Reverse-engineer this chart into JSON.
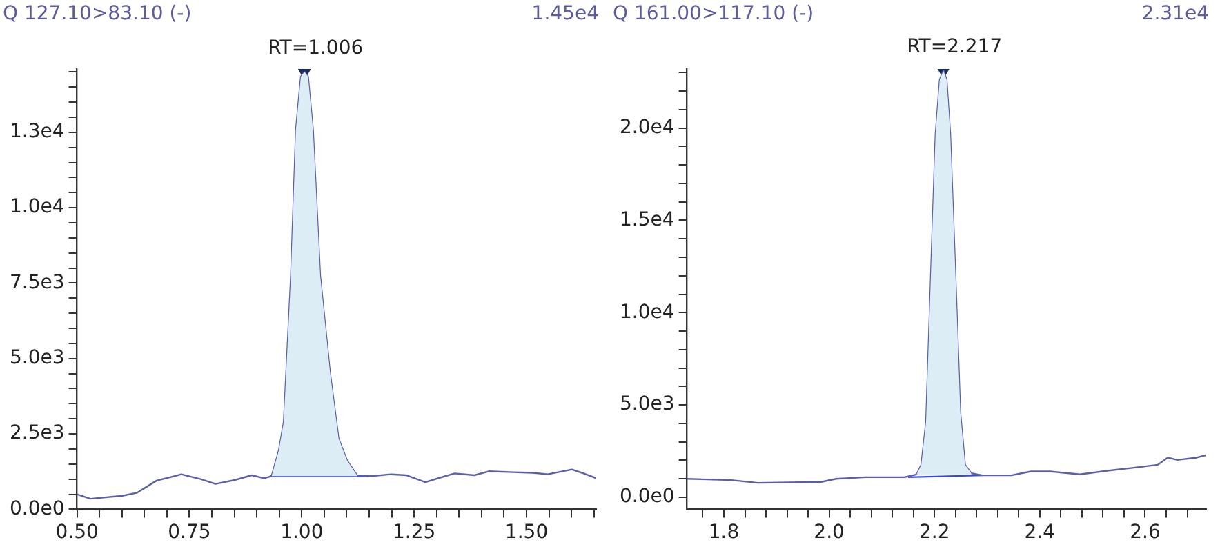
{
  "chart_data": [
    {
      "type": "line",
      "title": "Q 127.10>83.10 (-)",
      "subtitle": "1.45e4",
      "marker": "none",
      "xlim": [
        0.5,
        1.655
      ],
      "ylim": [
        0,
        14600
      ],
      "xticks": [
        {
          "value": 0.5,
          "label": "0.50"
        },
        {
          "value": 0.55,
          "label": null
        },
        {
          "value": 0.6,
          "label": null
        },
        {
          "value": 0.65,
          "label": null
        },
        {
          "value": 0.7,
          "label": null
        },
        {
          "value": 0.75,
          "label": "0.75"
        },
        {
          "value": 0.8,
          "label": null
        },
        {
          "value": 0.85,
          "label": null
        },
        {
          "value": 0.9,
          "label": null
        },
        {
          "value": 0.95,
          "label": null
        },
        {
          "value": 1.0,
          "label": "1.00"
        },
        {
          "value": 1.05,
          "label": null
        },
        {
          "value": 1.1,
          "label": null
        },
        {
          "value": 1.15,
          "label": null
        },
        {
          "value": 1.2,
          "label": null
        },
        {
          "value": 1.25,
          "label": "1.25"
        },
        {
          "value": 1.3,
          "label": null
        },
        {
          "value": 1.35,
          "label": null
        },
        {
          "value": 1.4,
          "label": null
        },
        {
          "value": 1.45,
          "label": null
        },
        {
          "value": 1.5,
          "label": "1.50"
        },
        {
          "value": 1.55,
          "label": null
        },
        {
          "value": 1.6,
          "label": null
        },
        {
          "value": 1.65,
          "label": null
        }
      ],
      "yticks": [
        {
          "value": 0,
          "label": "0.0e0"
        },
        {
          "value": 500,
          "label": null
        },
        {
          "value": 1000,
          "label": null
        },
        {
          "value": 1500,
          "label": null
        },
        {
          "value": 2000,
          "label": null
        },
        {
          "value": 2500,
          "label": "2.5e3"
        },
        {
          "value": 3000,
          "label": null
        },
        {
          "value": 3500,
          "label": null
        },
        {
          "value": 4000,
          "label": null
        },
        {
          "value": 4500,
          "label": null
        },
        {
          "value": 5000,
          "label": "5.0e3"
        },
        {
          "value": 5500,
          "label": null
        },
        {
          "value": 6000,
          "label": null
        },
        {
          "value": 6500,
          "label": null
        },
        {
          "value": 7000,
          "label": null
        },
        {
          "value": 7500,
          "label": "7.5e3"
        },
        {
          "value": 8000,
          "label": null
        },
        {
          "value": 8500,
          "label": null
        },
        {
          "value": 9000,
          "label": null
        },
        {
          "value": 9500,
          "label": null
        },
        {
          "value": 10000,
          "label": "1.0e4"
        },
        {
          "value": 10500,
          "label": null
        },
        {
          "value": 11000,
          "label": null
        },
        {
          "value": 11500,
          "label": null
        },
        {
          "value": 12000,
          "label": null
        },
        {
          "value": 12500,
          "label": "1.3e4"
        },
        {
          "value": 13000,
          "label": null
        },
        {
          "value": 13500,
          "label": null
        },
        {
          "value": 14000,
          "label": null
        },
        {
          "value": 14500,
          "label": null
        }
      ],
      "series": [
        {
          "type": "area",
          "color": "#dcedf5",
          "x": [
            0.933,
            0.949,
            0.96,
            0.976,
            0.987,
            0.998,
            1.006,
            1.014,
            1.025,
            1.041,
            1.063,
            1.082,
            1.101,
            1.123
          ],
          "values": [
            1100,
            1950,
            2900,
            7740,
            12580,
            14350,
            14500,
            14350,
            12580,
            7740,
            4520,
            2340,
            1610,
            1130
          ]
        },
        {
          "color": "#5a5fa8",
          "x": [
            0.5,
            0.53,
            0.601,
            0.634,
            0.677,
            0.732,
            0.775,
            0.808,
            0.851,
            0.889,
            0.916,
            0.933,
            0.949,
            0.96,
            0.976,
            0.987,
            0.998,
            1.006,
            1.014,
            1.025,
            1.041,
            1.063,
            1.082,
            1.101,
            1.123,
            1.155,
            1.199,
            1.232,
            1.275,
            1.308,
            1.34,
            1.384,
            1.416,
            1.471,
            1.514,
            1.547,
            1.601,
            1.623,
            1.655
          ],
          "values": [
            500,
            350,
            450,
            550,
            950,
            1160,
            1000,
            840,
            970,
            1130,
            1030,
            1100,
            1950,
            2900,
            7740,
            12580,
            14350,
            14500,
            14350,
            12580,
            7740,
            4520,
            2340,
            1610,
            1130,
            1100,
            1160,
            1130,
            900,
            1050,
            1190,
            1130,
            1260,
            1230,
            1210,
            1160,
            1320,
            1210,
            1030
          ]
        },
        {
          "color": "#3347f0",
          "x": [
            0.93,
            1.15
          ],
          "values": [
            1100,
            1100
          ]
        },
        {
          "type": "scatter",
          "marker": "triangle",
          "color": "#1b2a5a",
          "x": [
            1.006
          ],
          "values": [
            14500
          ]
        }
      ],
      "annotations": [
        {
          "text": "RT=1.006",
          "x": 1.006,
          "y": 14500
        }
      ]
    },
    {
      "type": "line",
      "title": "Q 161.00>117.10 (-)",
      "subtitle": "2.31e4",
      "marker": "none",
      "xlim": [
        1.73,
        2.716
      ],
      "ylim": [
        -650,
        23200
      ],
      "xticks": [
        {
          "value": 1.76,
          "label": null
        },
        {
          "value": 1.8,
          "label": "1.8"
        },
        {
          "value": 1.84,
          "label": null
        },
        {
          "value": 1.88,
          "label": null
        },
        {
          "value": 1.92,
          "label": null
        },
        {
          "value": 1.96,
          "label": null
        },
        {
          "value": 2.0,
          "label": "2.0"
        },
        {
          "value": 2.04,
          "label": null
        },
        {
          "value": 2.08,
          "label": null
        },
        {
          "value": 2.12,
          "label": null
        },
        {
          "value": 2.16,
          "label": null
        },
        {
          "value": 2.2,
          "label": "2.2"
        },
        {
          "value": 2.24,
          "label": null
        },
        {
          "value": 2.28,
          "label": null
        },
        {
          "value": 2.32,
          "label": null
        },
        {
          "value": 2.36,
          "label": null
        },
        {
          "value": 2.4,
          "label": "2.4"
        },
        {
          "value": 2.44,
          "label": null
        },
        {
          "value": 2.48,
          "label": null
        },
        {
          "value": 2.52,
          "label": null
        },
        {
          "value": 2.56,
          "label": null
        },
        {
          "value": 2.6,
          "label": "2.6"
        },
        {
          "value": 2.64,
          "label": null
        },
        {
          "value": 2.68,
          "label": null
        }
      ],
      "yticks": [
        {
          "value": 0,
          "label": "0.0e0"
        },
        {
          "value": 1000,
          "label": null
        },
        {
          "value": 2000,
          "label": null
        },
        {
          "value": 3000,
          "label": null
        },
        {
          "value": 4000,
          "label": null
        },
        {
          "value": 5000,
          "label": "5.0e3"
        },
        {
          "value": 6000,
          "label": null
        },
        {
          "value": 7000,
          "label": null
        },
        {
          "value": 8000,
          "label": null
        },
        {
          "value": 9000,
          "label": null
        },
        {
          "value": 10000,
          "label": "1.0e4"
        },
        {
          "value": 11000,
          "label": null
        },
        {
          "value": 12000,
          "label": null
        },
        {
          "value": 13000,
          "label": null
        },
        {
          "value": 14000,
          "label": null
        },
        {
          "value": 15000,
          "label": "1.5e4"
        },
        {
          "value": 16000,
          "label": null
        },
        {
          "value": 17000,
          "label": null
        },
        {
          "value": 18000,
          "label": null
        },
        {
          "value": 19000,
          "label": null
        },
        {
          "value": 20000,
          "label": "2.0e4"
        },
        {
          "value": 21000,
          "label": null
        },
        {
          "value": 22000,
          "label": null
        },
        {
          "value": 23000,
          "label": null
        }
      ],
      "series": [
        {
          "type": "area",
          "color": "#dcedf5",
          "x": [
            2.166,
            2.175,
            2.184,
            2.193,
            2.202,
            2.21,
            2.217,
            2.223,
            2.23,
            2.24,
            2.249,
            2.258,
            2.27
          ],
          "values": [
            1240,
            1760,
            4090,
            11870,
            19640,
            22620,
            23100,
            22620,
            19640,
            11870,
            4610,
            1760,
            1300
          ]
        },
        {
          "color": "#5a5fa8",
          "x": [
            1.73,
            1.814,
            1.865,
            1.985,
            2.013,
            2.069,
            2.143,
            2.166,
            2.175,
            2.184,
            2.193,
            2.202,
            2.21,
            2.217,
            2.223,
            2.23,
            2.24,
            2.249,
            2.258,
            2.27,
            2.291,
            2.346,
            2.383,
            2.42,
            2.476,
            2.531,
            2.587,
            2.624,
            2.643,
            2.661,
            2.698,
            2.715
          ],
          "values": [
            1000,
            930,
            780,
            830,
            1000,
            1090,
            1090,
            1240,
            1760,
            4090,
            11870,
            19640,
            22620,
            23100,
            22620,
            19640,
            11870,
            4610,
            1760,
            1300,
            1190,
            1190,
            1400,
            1400,
            1240,
            1450,
            1630,
            1760,
            2150,
            2020,
            2150,
            2280
          ]
        },
        {
          "color": "#3347f0",
          "x": [
            2.15,
            2.29
          ],
          "values": [
            1090,
            1190
          ]
        },
        {
          "type": "scatter",
          "marker": "triangle",
          "color": "#1b2a5a",
          "x": [
            2.217
          ],
          "values": [
            23100
          ]
        }
      ],
      "annotations": [
        {
          "text": "RT=2.217",
          "x": 2.217,
          "y": 23100
        }
      ]
    }
  ]
}
